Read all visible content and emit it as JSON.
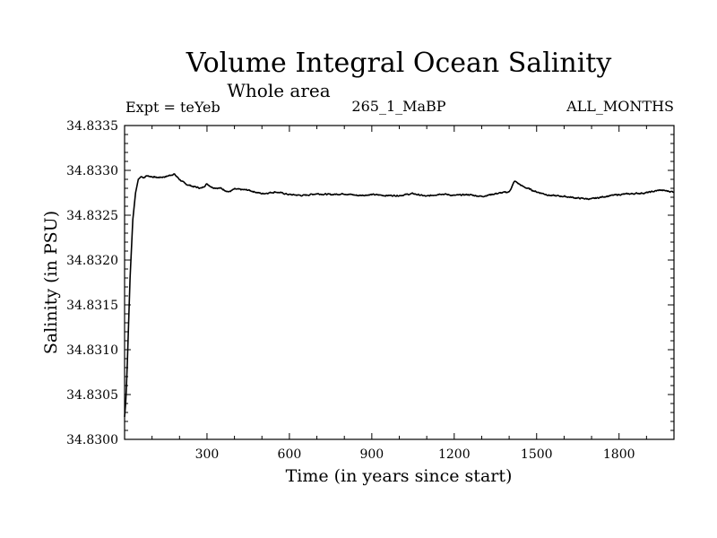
{
  "chart_data": {
    "type": "line",
    "title": "Volume Integral Ocean Salinity",
    "subtitle": "Whole area",
    "experiment": "Expt = teYeb",
    "run_id": "265_1_MaBP",
    "months": "ALL_MONTHS",
    "xlabel": "Time (in years since start)",
    "ylabel": "Salinity (in PSU)",
    "xlim": [
      0,
      2000
    ],
    "ylim": [
      34.83,
      34.8335
    ],
    "xticks": [
      300,
      600,
      900,
      1200,
      1500,
      1800
    ],
    "xtick_labels": [
      "300",
      "600",
      "900",
      "1200",
      "1500",
      "1800"
    ],
    "yticks": [
      34.83,
      34.8305,
      34.831,
      34.8315,
      34.832,
      34.8325,
      34.833,
      34.8335
    ],
    "ytick_labels": [
      "34.8300",
      "34.8305",
      "34.8310",
      "34.8315",
      "34.8320",
      "34.8325",
      "34.8330",
      "34.8335"
    ],
    "series": [
      {
        "name": "salinity",
        "color": "#000000",
        "x": [
          0,
          5,
          10,
          20,
          30,
          40,
          50,
          60,
          70,
          80,
          100,
          120,
          150,
          180,
          200,
          220,
          250,
          280,
          300,
          320,
          350,
          380,
          400,
          450,
          500,
          550,
          600,
          650,
          700,
          750,
          800,
          850,
          900,
          950,
          1000,
          1050,
          1100,
          1150,
          1200,
          1250,
          1300,
          1350,
          1400,
          1420,
          1450,
          1500,
          1550,
          1600,
          1650,
          1700,
          1750,
          1800,
          1850,
          1900,
          1950,
          2000
        ],
        "values": [
          34.83025,
          34.83045,
          34.83085,
          34.8318,
          34.83245,
          34.83275,
          34.8329,
          34.83293,
          34.83292,
          34.83294,
          34.83293,
          34.83292,
          34.83293,
          34.83296,
          34.8329,
          34.83285,
          34.83282,
          34.8328,
          34.83285,
          34.83281,
          34.8328,
          34.83276,
          34.83279,
          34.83278,
          34.83274,
          34.83276,
          34.83273,
          34.83272,
          34.83274,
          34.83273,
          34.83274,
          34.83272,
          34.83273,
          34.83272,
          34.83272,
          34.83274,
          34.83271,
          34.83274,
          34.83272,
          34.83273,
          34.83271,
          34.83274,
          34.83276,
          34.83288,
          34.83282,
          34.83276,
          34.83272,
          34.83271,
          34.83269,
          34.83268,
          34.83271,
          34.83273,
          34.83274,
          34.83275,
          34.83278,
          34.83276
        ]
      }
    ]
  }
}
